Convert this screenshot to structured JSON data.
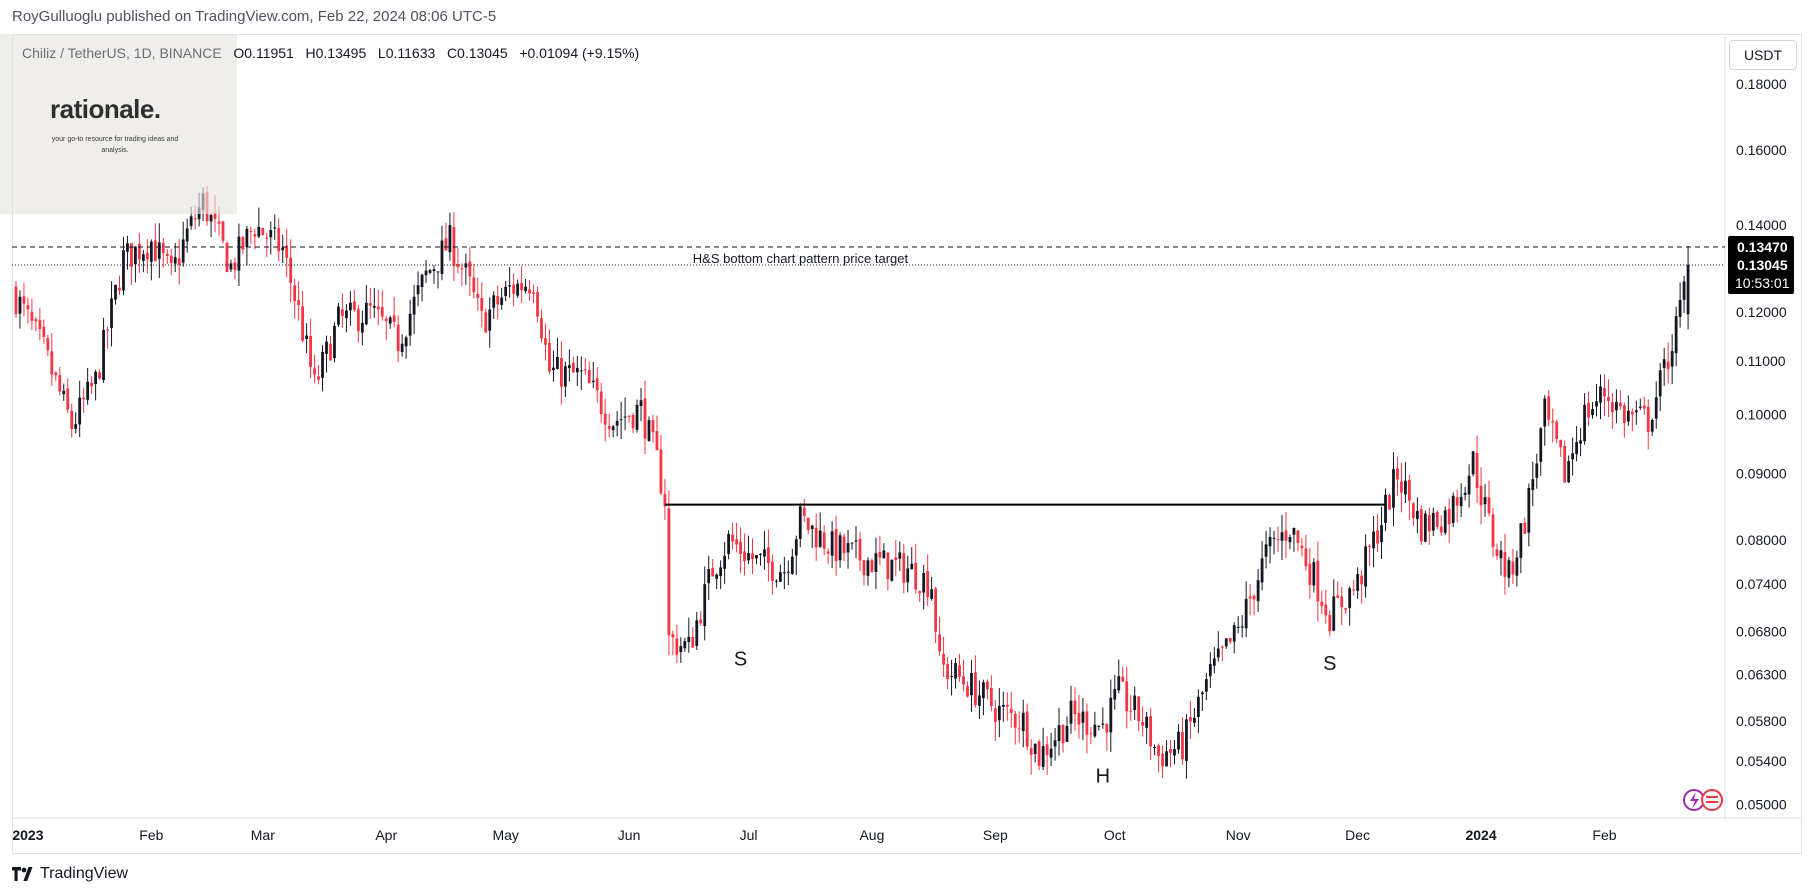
{
  "caption": "RoyGulluoglu published on TradingView.com, Feb 22, 2024 08:06 UTC-5",
  "legend": {
    "symbol": "Chiliz / TetherUS, 1D, BINANCE",
    "open": "O0.11951",
    "high": "H0.13495",
    "low": "L0.11633",
    "close": "C0.13045",
    "change": "+0.01094 (+9.15%)"
  },
  "currency": "USDT",
  "brand": {
    "logo": "rationale.",
    "tagline": "your go-to resource for trading ideas and analysis."
  },
  "footer": {
    "logo_text": "TradingView",
    "logo_icon": "tradingview-logo-icon"
  },
  "colors": {
    "up": "#131722",
    "down": "#f23645",
    "neckline": "#000000",
    "target": "#131722"
  },
  "price_labels": {
    "target": "0.13470",
    "last": "0.13045",
    "countdown": "10:53:01"
  },
  "chart_data": {
    "type": "candlestick",
    "y_scale": "log",
    "ylim": [
      0.0488,
      0.196
    ],
    "y_ticks": [
      "0.18000",
      "0.16000",
      "0.14000",
      "0.12000",
      "0.11000",
      "0.10000",
      "0.09000",
      "0.08000",
      "0.07400",
      "0.06800",
      "0.06300",
      "0.05800",
      "0.05400",
      "0.05000"
    ],
    "y_tick_values": [
      0.18,
      0.16,
      0.14,
      0.12,
      0.11,
      0.1,
      0.09,
      0.08,
      0.074,
      0.068,
      0.063,
      0.058,
      0.054,
      0.05
    ],
    "x_ticks": [
      "2023",
      "Feb",
      "Mar",
      "Apr",
      "May",
      "Jun",
      "Jul",
      "Aug",
      "Sep",
      "Oct",
      "Nov",
      "Dec",
      "2024",
      "Feb"
    ],
    "x_tick_dates": [
      "2023-01-01",
      "2023-02-01",
      "2023-03-01",
      "2023-04-01",
      "2023-05-01",
      "2023-06-01",
      "2023-07-01",
      "2023-08-01",
      "2023-09-01",
      "2023-10-01",
      "2023-11-01",
      "2023-12-01",
      "2024-01-01",
      "2024-02-01"
    ],
    "x_range": [
      "2022-12-28",
      "2024-02-26"
    ],
    "price_path": [
      {
        "date": "2022-12-28",
        "price": 0.125
      },
      {
        "date": "2023-01-05",
        "price": 0.112
      },
      {
        "date": "2023-01-12",
        "price": 0.098
      },
      {
        "date": "2023-01-18",
        "price": 0.106
      },
      {
        "date": "2023-01-25",
        "price": 0.132
      },
      {
        "date": "2023-02-01",
        "price": 0.136
      },
      {
        "date": "2023-02-06",
        "price": 0.128
      },
      {
        "date": "2023-02-10",
        "price": 0.138
      },
      {
        "date": "2023-02-14",
        "price": 0.146
      },
      {
        "date": "2023-02-21",
        "price": 0.13
      },
      {
        "date": "2023-02-27",
        "price": 0.14
      },
      {
        "date": "2023-03-06",
        "price": 0.134
      },
      {
        "date": "2023-03-10",
        "price": 0.12
      },
      {
        "date": "2023-03-14",
        "price": 0.105
      },
      {
        "date": "2023-03-20",
        "price": 0.118
      },
      {
        "date": "2023-03-28",
        "price": 0.12
      },
      {
        "date": "2023-04-04",
        "price": 0.114
      },
      {
        "date": "2023-04-11",
        "price": 0.128
      },
      {
        "date": "2023-04-17",
        "price": 0.136
      },
      {
        "date": "2023-04-21",
        "price": 0.128
      },
      {
        "date": "2023-04-25",
        "price": 0.118
      },
      {
        "date": "2023-05-02",
        "price": 0.125
      },
      {
        "date": "2023-05-08",
        "price": 0.127
      },
      {
        "date": "2023-05-12",
        "price": 0.108
      },
      {
        "date": "2023-05-20",
        "price": 0.107
      },
      {
        "date": "2023-05-28",
        "price": 0.099
      },
      {
        "date": "2023-06-04",
        "price": 0.101
      },
      {
        "date": "2023-06-08",
        "price": 0.092
      },
      {
        "date": "2023-06-10",
        "price": 0.086
      },
      {
        "date": "2023-06-11",
        "price": 0.067
      },
      {
        "date": "2023-06-16",
        "price": 0.066
      },
      {
        "date": "2023-06-22",
        "price": 0.076
      },
      {
        "date": "2023-06-26",
        "price": 0.08
      },
      {
        "date": "2023-07-03",
        "price": 0.077
      },
      {
        "date": "2023-07-10",
        "price": 0.076
      },
      {
        "date": "2023-07-14",
        "price": 0.083
      },
      {
        "date": "2023-07-22",
        "price": 0.079
      },
      {
        "date": "2023-08-01",
        "price": 0.077
      },
      {
        "date": "2023-08-10",
        "price": 0.076
      },
      {
        "date": "2023-08-16",
        "price": 0.074
      },
      {
        "date": "2023-08-18",
        "price": 0.064
      },
      {
        "date": "2023-08-25",
        "price": 0.062
      },
      {
        "date": "2023-09-02",
        "price": 0.059
      },
      {
        "date": "2023-09-08",
        "price": 0.058
      },
      {
        "date": "2023-09-12",
        "price": 0.0545
      },
      {
        "date": "2023-09-20",
        "price": 0.0585
      },
      {
        "date": "2023-09-28",
        "price": 0.0575
      },
      {
        "date": "2023-10-02",
        "price": 0.061
      },
      {
        "date": "2023-10-08",
        "price": 0.058
      },
      {
        "date": "2023-10-12",
        "price": 0.0545
      },
      {
        "date": "2023-10-18",
        "price": 0.0555
      },
      {
        "date": "2023-10-25",
        "price": 0.063
      },
      {
        "date": "2023-11-01",
        "price": 0.068
      },
      {
        "date": "2023-11-08",
        "price": 0.078
      },
      {
        "date": "2023-11-14",
        "price": 0.082
      },
      {
        "date": "2023-11-20",
        "price": 0.075
      },
      {
        "date": "2023-11-24",
        "price": 0.07
      },
      {
        "date": "2023-12-01",
        "price": 0.074
      },
      {
        "date": "2023-12-07",
        "price": 0.083
      },
      {
        "date": "2023-12-11",
        "price": 0.09
      },
      {
        "date": "2023-12-17",
        "price": 0.082
      },
      {
        "date": "2023-12-24",
        "price": 0.084
      },
      {
        "date": "2023-12-30",
        "price": 0.092
      },
      {
        "date": "2024-01-04",
        "price": 0.08
      },
      {
        "date": "2024-01-08",
        "price": 0.075
      },
      {
        "date": "2024-01-12",
        "price": 0.083
      },
      {
        "date": "2024-01-17",
        "price": 0.1
      },
      {
        "date": "2024-01-22",
        "price": 0.09
      },
      {
        "date": "2024-01-27",
        "price": 0.1
      },
      {
        "date": "2024-02-01",
        "price": 0.104
      },
      {
        "date": "2024-02-06",
        "price": 0.1
      },
      {
        "date": "2024-02-12",
        "price": 0.099
      },
      {
        "date": "2024-02-16",
        "price": 0.108
      },
      {
        "date": "2024-02-20",
        "price": 0.12
      },
      {
        "date": "2024-02-22",
        "price": 0.13045
      }
    ],
    "annotations": {
      "neckline": {
        "price": 0.0852,
        "from": "2023-06-10",
        "to": "2023-12-08"
      },
      "target_line": {
        "price": 0.1347,
        "label": "H&S bottom chart pattern price target"
      },
      "last_price": 0.13045,
      "labels": [
        {
          "text": "S",
          "date": "2023-06-29",
          "price": 0.064
        },
        {
          "text": "H",
          "date": "2023-09-28",
          "price": 0.052
        },
        {
          "text": "S",
          "date": "2023-11-24",
          "price": 0.0635
        }
      ]
    }
  }
}
